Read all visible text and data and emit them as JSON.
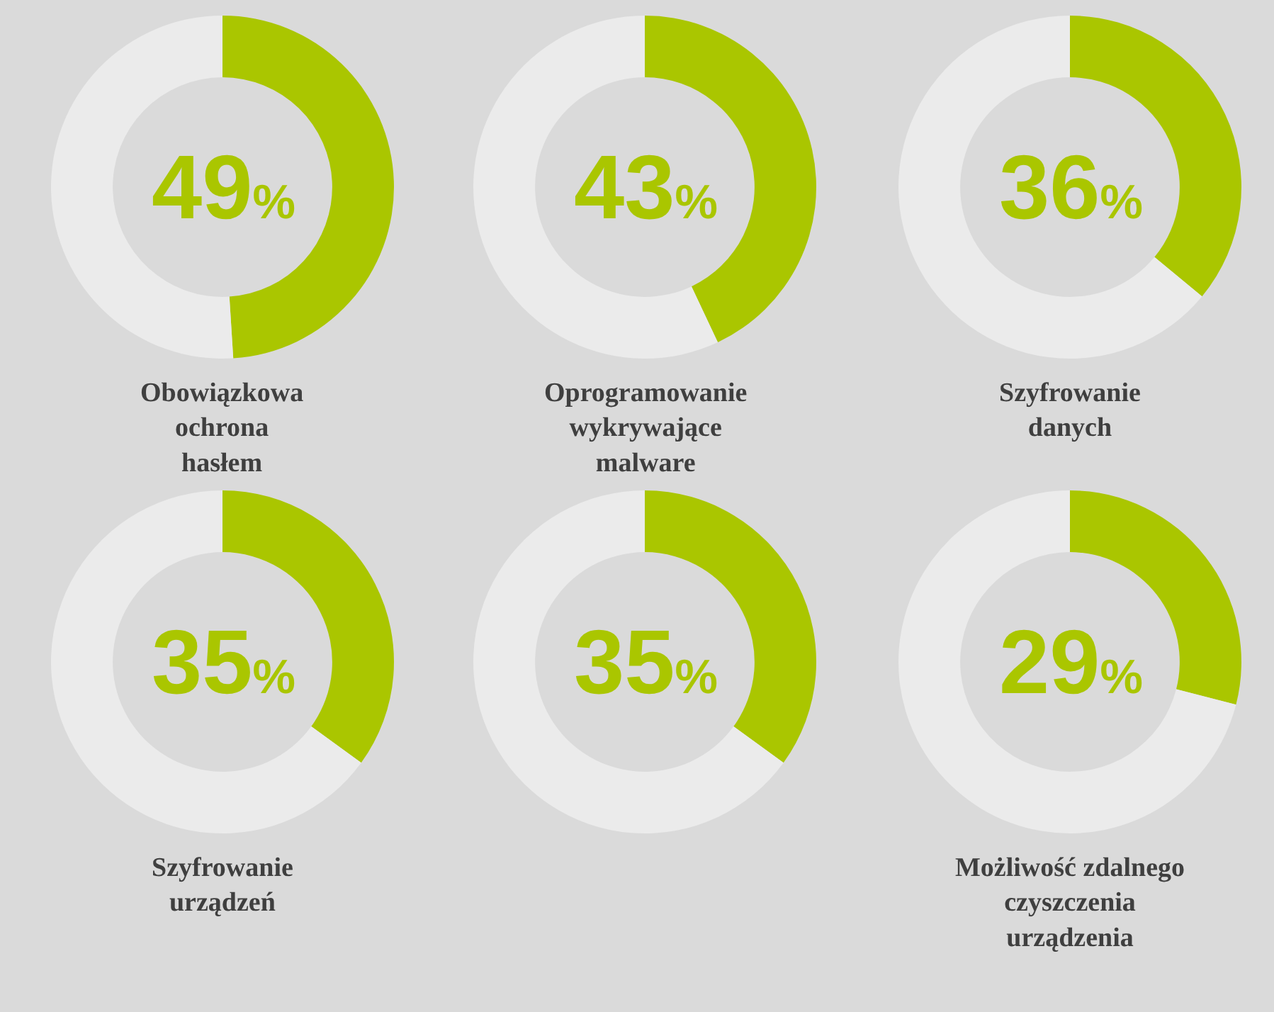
{
  "chart_data": [
    {
      "type": "donut",
      "title": "Obowiązkowa\nochrona\nhasłem",
      "categories": [
        null,
        null
      ],
      "values": [
        49,
        51
      ],
      "colors": [
        "#aac600",
        "#ebebeb"
      ],
      "value_labels": [
        "49%",
        null
      ]
    },
    {
      "type": "donut",
      "title": "Oprogramowanie\nwykrywające\nmalware",
      "categories": [
        null,
        null
      ],
      "values": [
        43,
        57
      ],
      "colors": [
        "#aac600",
        "#ebebeb"
      ],
      "value_labels": [
        "43%",
        null
      ]
    },
    {
      "type": "donut",
      "title": "Szyfrowanie\ndanych",
      "categories": [
        null,
        null
      ],
      "values": [
        36,
        64
      ],
      "colors": [
        "#aac600",
        "#ebebeb"
      ],
      "value_labels": [
        "36%",
        null
      ]
    },
    {
      "type": "donut",
      "title": "Szyfrowanie\nurządzeń",
      "categories": [
        null,
        null
      ],
      "values": [
        35,
        65
      ],
      "colors": [
        "#aac600",
        "#ebebeb"
      ],
      "value_labels": [
        "35%",
        null
      ]
    },
    {
      "type": "donut",
      "categories": [
        null,
        null
      ],
      "values": [
        35,
        65
      ],
      "colors": [
        "#aac600",
        "#ebebeb"
      ],
      "value_labels": [
        "35%",
        null
      ]
    },
    {
      "type": "donut",
      "title": "Możliwość zdalnego\nczyszczenia\nurządzenia",
      "categories": [
        null,
        null
      ],
      "values": [
        29,
        71
      ],
      "colors": [
        "#aac600",
        "#ebebeb"
      ],
      "value_labels": [
        "29%",
        null
      ]
    }
  ]
}
